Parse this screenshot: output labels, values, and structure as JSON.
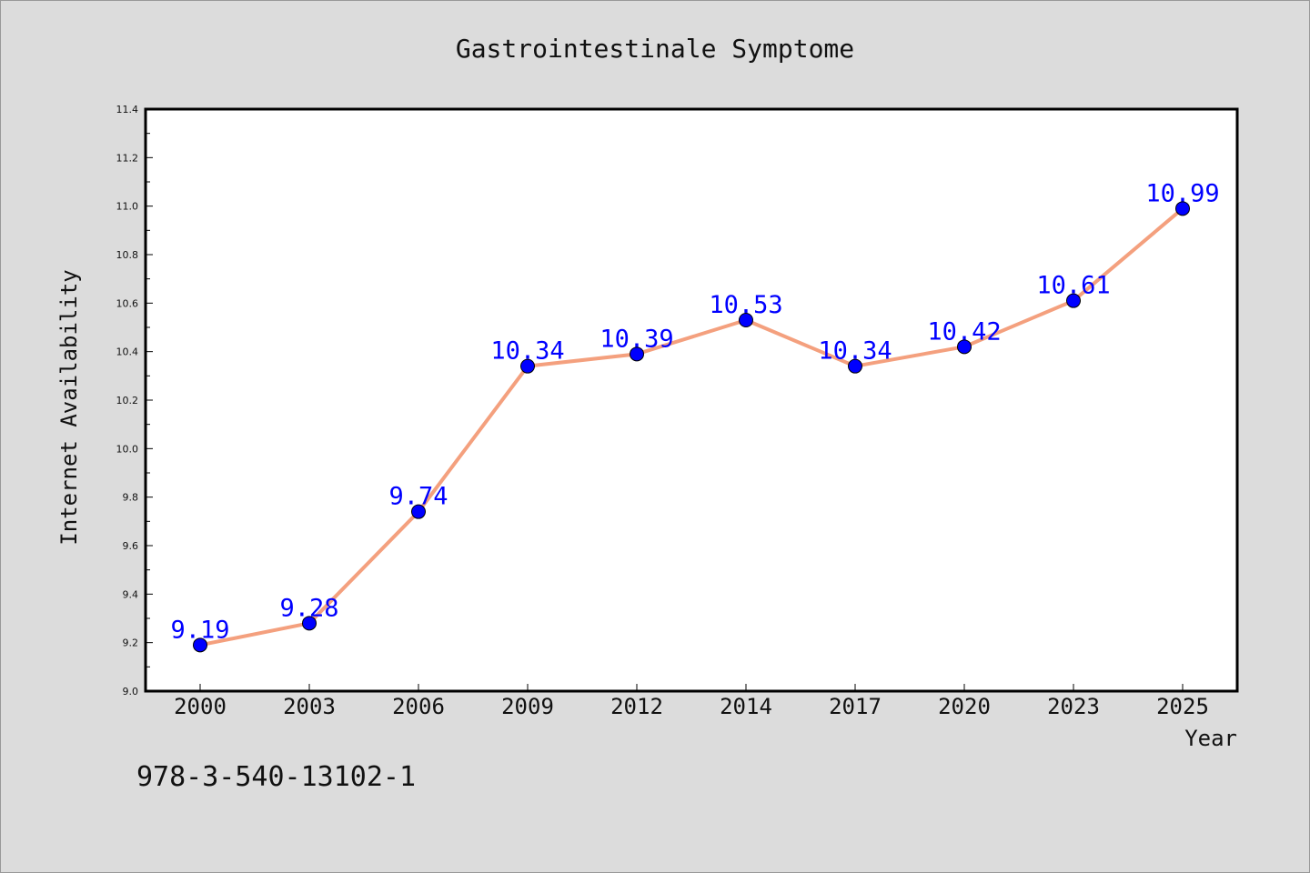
{
  "chart_data": {
    "type": "line",
    "title": "Gastrointestinale Symptome",
    "xlabel": "Year",
    "ylabel": "Internet Availability",
    "categories": [
      "2000",
      "2003",
      "2006",
      "2009",
      "2012",
      "2014",
      "2017",
      "2020",
      "2023",
      "2025"
    ],
    "series": [
      {
        "values": [
          9.19,
          9.28,
          9.74,
          10.34,
          10.39,
          10.53,
          10.34,
          10.42,
          10.61,
          10.99
        ],
        "data_labels": [
          "9.19",
          "9.28",
          "9.74",
          "10.34",
          "10.39",
          "10.53",
          "10.34",
          "10.42",
          "10.61",
          "10.99"
        ]
      }
    ],
    "ylim": [
      9.0,
      11.4
    ],
    "yticks": [
      "9.0",
      "9.2",
      "9.4",
      "9.6",
      "9.8",
      "10.0",
      "10.2",
      "10.4",
      "10.6",
      "10.8",
      "11.0",
      "11.2",
      "11.4"
    ],
    "grid": false,
    "line_color": "#f4a07e",
    "marker_color": "#0000ff",
    "label_color": "#0000ff",
    "background_color": "#dcdcdc",
    "plot_background": "#ffffff"
  },
  "footer": {
    "text": "978-3-540-13102-1"
  }
}
